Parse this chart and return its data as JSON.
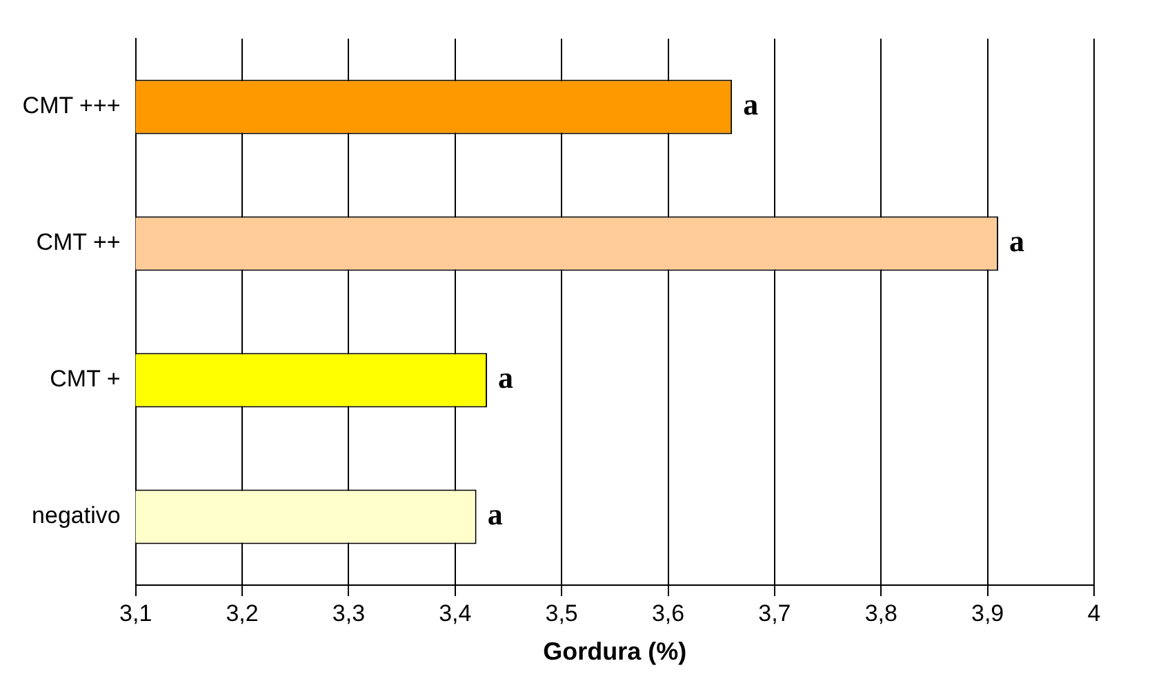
{
  "chart_data": {
    "type": "bar",
    "orientation": "horizontal",
    "xlabel": "Gordura (%)",
    "categories": [
      "CMT +++",
      "CMT ++",
      "CMT +",
      "negativo"
    ],
    "values": [
      3.66,
      3.91,
      3.43,
      3.42
    ],
    "colors": [
      "#ff9900",
      "#ffcc99",
      "#ffff00",
      "#ffffcc"
    ],
    "xlim": [
      3.1,
      4
    ],
    "xticks": [
      {
        "value": 3.1,
        "label": "3,1"
      },
      {
        "value": 3.2,
        "label": "3,2"
      },
      {
        "value": 3.3,
        "label": "3,3"
      },
      {
        "value": 3.4,
        "label": "3,4"
      },
      {
        "value": 3.5,
        "label": "3,5"
      },
      {
        "value": 3.6,
        "label": "3,6"
      },
      {
        "value": 3.7,
        "label": "3,7"
      },
      {
        "value": 3.8,
        "label": "3,8"
      },
      {
        "value": 3.9,
        "label": "3,9"
      },
      {
        "value": 4,
        "label": "4"
      }
    ],
    "grid": "x",
    "annotations": [
      {
        "text": "a",
        "x": 3.66,
        "y": "CMT +++"
      },
      {
        "text": "a",
        "x": 3.91,
        "y": "CMT ++"
      },
      {
        "text": "a",
        "x": 3.43,
        "y": "CMT +"
      },
      {
        "text": "a",
        "x": 3.42,
        "y": "negativo"
      }
    ]
  }
}
